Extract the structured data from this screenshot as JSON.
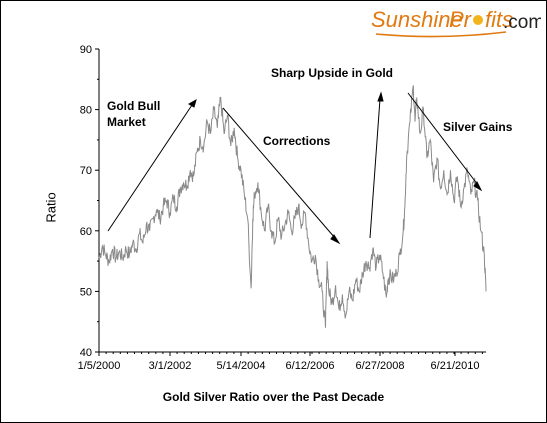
{
  "brand": {
    "logo_text_part1": "Sunshine",
    "logo_text_part2": "Pr",
    "logo_text_part3": "fits",
    "logo_text_domain": ".com",
    "color_orange": "#e07a12",
    "color_dark": "#222222"
  },
  "chart_data": {
    "type": "line",
    "title": "",
    "caption": "Gold Silver Ratio over the Past Decade",
    "xlabel": "",
    "ylabel": "Ratio",
    "ylim": [
      40,
      90
    ],
    "yticks": [
      40,
      50,
      60,
      70,
      80,
      90
    ],
    "xlim_index": [
      0,
      10.0
    ],
    "xticks": [
      {
        "label": "1/5/2000",
        "pos": 0.0
      },
      {
        "label": "3/1/2002",
        "pos": 2.15
      },
      {
        "label": "5/14/2004",
        "pos": 4.36
      },
      {
        "label": "6/12/2006",
        "pos": 6.44
      },
      {
        "label": "6/27/2008",
        "pos": 8.48
      },
      {
        "label": "6/21/2010",
        "pos": 10.46
      }
    ],
    "grid": false,
    "series": [
      {
        "name": "",
        "color": "#8a8a8a",
        "points": [
          [
            0.0,
            55.5
          ],
          [
            0.1,
            57.5
          ],
          [
            0.2,
            56
          ],
          [
            0.3,
            55
          ],
          [
            0.4,
            57
          ],
          [
            0.5,
            55.5
          ],
          [
            0.6,
            56.5
          ],
          [
            0.7,
            55.5
          ],
          [
            0.8,
            57
          ],
          [
            0.9,
            56
          ],
          [
            1.0,
            58
          ],
          [
            1.1,
            57
          ],
          [
            1.2,
            59.5
          ],
          [
            1.3,
            58
          ],
          [
            1.4,
            61
          ],
          [
            1.5,
            60
          ],
          [
            1.6,
            62
          ],
          [
            1.7,
            63.5
          ],
          [
            1.8,
            62
          ],
          [
            1.9,
            64
          ],
          [
            2.0,
            65
          ],
          [
            2.1,
            63
          ],
          [
            2.2,
            65.5
          ],
          [
            2.3,
            64
          ],
          [
            2.4,
            67
          ],
          [
            2.5,
            68
          ],
          [
            2.6,
            67.5
          ],
          [
            2.7,
            70
          ],
          [
            2.8,
            69
          ],
          [
            2.9,
            73
          ],
          [
            3.0,
            75
          ],
          [
            3.1,
            74
          ],
          [
            3.2,
            78
          ],
          [
            3.3,
            76
          ],
          [
            3.4,
            80
          ],
          [
            3.5,
            77
          ],
          [
            3.6,
            82
          ],
          [
            3.7,
            76
          ],
          [
            3.8,
            79
          ],
          [
            3.9,
            74
          ],
          [
            4.0,
            77
          ],
          [
            4.1,
            72
          ],
          [
            4.2,
            70
          ],
          [
            4.3,
            66
          ],
          [
            4.4,
            62
          ],
          [
            4.5,
            50.5
          ],
          [
            4.55,
            62
          ],
          [
            4.6,
            66
          ],
          [
            4.7,
            68
          ],
          [
            4.8,
            63
          ],
          [
            4.9,
            60
          ],
          [
            5.0,
            64
          ],
          [
            5.1,
            60
          ],
          [
            5.2,
            58
          ],
          [
            5.3,
            62
          ],
          [
            5.4,
            59
          ],
          [
            5.5,
            61
          ],
          [
            5.6,
            63
          ],
          [
            5.7,
            60
          ],
          [
            5.8,
            62
          ],
          [
            5.9,
            64
          ],
          [
            6.0,
            61
          ],
          [
            6.1,
            63
          ],
          [
            6.2,
            58
          ],
          [
            6.3,
            55
          ],
          [
            6.4,
            56
          ],
          [
            6.5,
            52
          ],
          [
            6.6,
            50
          ],
          [
            6.7,
            44
          ],
          [
            6.75,
            55
          ],
          [
            6.8,
            50
          ],
          [
            6.9,
            48
          ],
          [
            7.0,
            51
          ],
          [
            7.1,
            47
          ],
          [
            7.2,
            49.5
          ],
          [
            7.3,
            46
          ],
          [
            7.4,
            50
          ],
          [
            7.5,
            48.5
          ],
          [
            7.6,
            52
          ],
          [
            7.7,
            50
          ],
          [
            7.8,
            53
          ],
          [
            7.9,
            55
          ],
          [
            8.0,
            54
          ],
          [
            8.1,
            57
          ],
          [
            8.2,
            54
          ],
          [
            8.3,
            56
          ],
          [
            8.4,
            53
          ],
          [
            8.5,
            49
          ],
          [
            8.55,
            52
          ],
          [
            8.6,
            52.5
          ],
          [
            8.7,
            52
          ],
          [
            8.8,
            53
          ],
          [
            8.9,
            56
          ],
          [
            9.0,
            60
          ],
          [
            9.05,
            64
          ],
          [
            9.1,
            72
          ],
          [
            9.2,
            78
          ],
          [
            9.3,
            84
          ],
          [
            9.35,
            78
          ],
          [
            9.4,
            82
          ],
          [
            9.5,
            76
          ],
          [
            9.6,
            80
          ],
          [
            9.7,
            72
          ],
          [
            9.8,
            75
          ],
          [
            9.9,
            68
          ],
          [
            10.0,
            72
          ],
          [
            10.1,
            67
          ],
          [
            10.2,
            70
          ],
          [
            10.3,
            66
          ],
          [
            10.4,
            70
          ],
          [
            10.5,
            65
          ],
          [
            10.6,
            69
          ],
          [
            10.7,
            64
          ],
          [
            10.8,
            67
          ],
          [
            10.9,
            70
          ],
          [
            11.0,
            66
          ],
          [
            11.1,
            68
          ],
          [
            11.2,
            65
          ],
          [
            11.3,
            60
          ],
          [
            11.4,
            56
          ],
          [
            11.45,
            50
          ]
        ]
      }
    ],
    "annotations": [
      {
        "text_lines": [
          "Gold Bull",
          "Market"
        ],
        "anchor": "upper-left"
      },
      {
        "text_lines": [
          "Corrections"
        ],
        "anchor": "upper-middle"
      },
      {
        "text_lines": [
          "Sharp Upside in Gold"
        ],
        "anchor": "top-right"
      },
      {
        "text_lines": [
          "Silver Gains"
        ],
        "anchor": "right"
      }
    ]
  }
}
